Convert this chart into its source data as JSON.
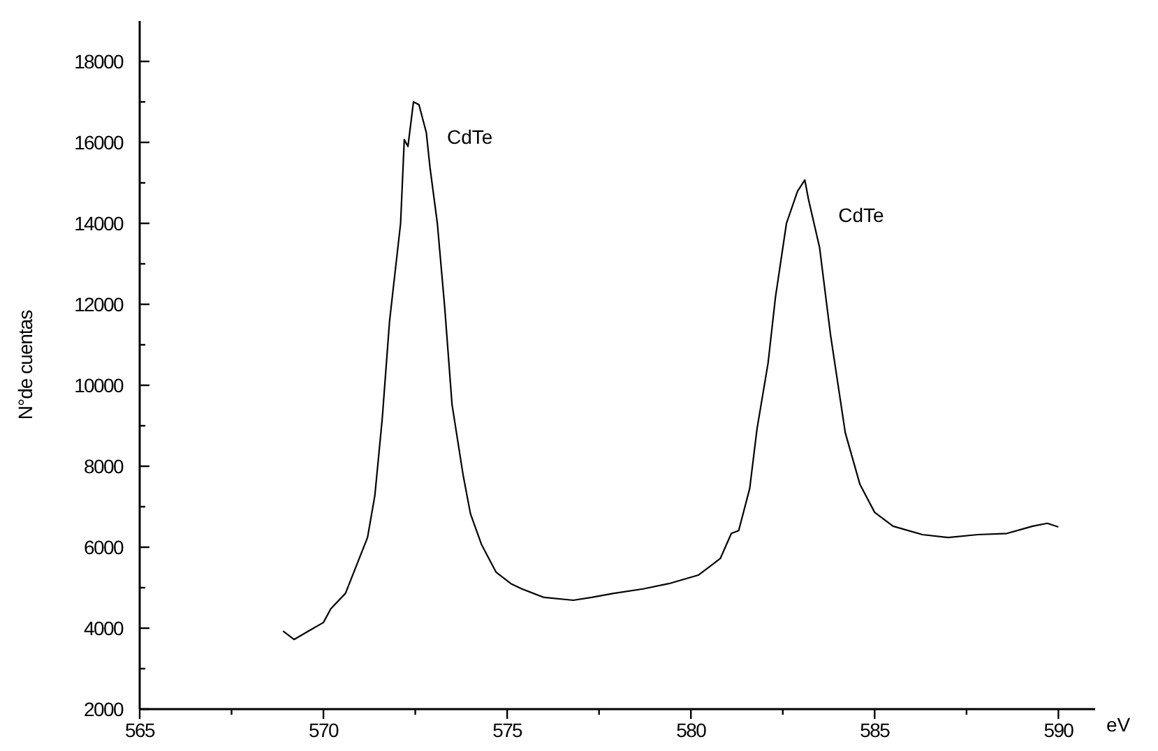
{
  "chart_data": {
    "type": "line",
    "xlabel": "eV",
    "ylabel": "N°de cuentas",
    "xlim": [
      565,
      591
    ],
    "ylim": [
      2000,
      19000
    ],
    "xticks": [
      565,
      {
        "value": 567.5,
        "label": null
      },
      570,
      {
        "value": 572.5,
        "label": null
      },
      575,
      {
        "value": 577.5,
        "label": null
      },
      580,
      {
        "value": 582.5,
        "label": null
      },
      585,
      {
        "value": 587.5,
        "label": null
      },
      590
    ],
    "yticks": [
      2000,
      {
        "value": 3000,
        "label": null
      },
      4000,
      {
        "value": 5000,
        "label": null
      },
      6000,
      {
        "value": 7000,
        "label": null
      },
      8000,
      {
        "value": 9000,
        "label": null
      },
      10000,
      {
        "value": 11000,
        "label": null
      },
      12000,
      {
        "value": 13000,
        "label": null
      },
      14000,
      {
        "value": 15000,
        "label": null
      },
      16000,
      {
        "value": 17000,
        "label": null
      },
      18000
    ],
    "grid": false,
    "marker": "none",
    "line_style": "solid",
    "annotations": [
      {
        "text": "CdTe",
        "x": 572.45,
        "y": 17000
      },
      {
        "text": "CdTe",
        "x": 583.1,
        "y": 15070
      }
    ],
    "series": [
      {
        "color": "#000000",
        "x": [
          568.9,
          569.2,
          569.6,
          570.0,
          570.2,
          570.6,
          570.9,
          571.2,
          571.4,
          571.6,
          571.8,
          572.1,
          572.2,
          572.3,
          572.45,
          572.6,
          572.8,
          572.9,
          573.1,
          573.3,
          573.5,
          573.8,
          574.0,
          574.3,
          574.7,
          575.1,
          575.4,
          576.0,
          576.8,
          577.3,
          577.9,
          578.7,
          579.4,
          580.2,
          580.8,
          581.1,
          581.3,
          581.6,
          581.8,
          582.1,
          582.3,
          582.6,
          582.9,
          583.1,
          583.2,
          583.5,
          583.8,
          584.2,
          584.6,
          585.0,
          585.5,
          586.3,
          587.0,
          587.8,
          588.6,
          589.3,
          589.7,
          590.0
        ],
        "values": [
          3930,
          3720,
          3930,
          4140,
          4480,
          4860,
          5550,
          6240,
          7280,
          9170,
          11590,
          14000,
          16070,
          15900,
          17000,
          16930,
          16240,
          15380,
          14000,
          11930,
          9520,
          7790,
          6830,
          6070,
          5380,
          5100,
          4970,
          4760,
          4690,
          4760,
          4860,
          4970,
          5100,
          5310,
          5720,
          6340,
          6410,
          7450,
          8930,
          10550,
          12170,
          14000,
          14790,
          15070,
          14590,
          13410,
          11240,
          8830,
          7550,
          6860,
          6520,
          6310,
          6240,
          6310,
          6340,
          6520,
          6590,
          6500
        ]
      }
    ]
  }
}
